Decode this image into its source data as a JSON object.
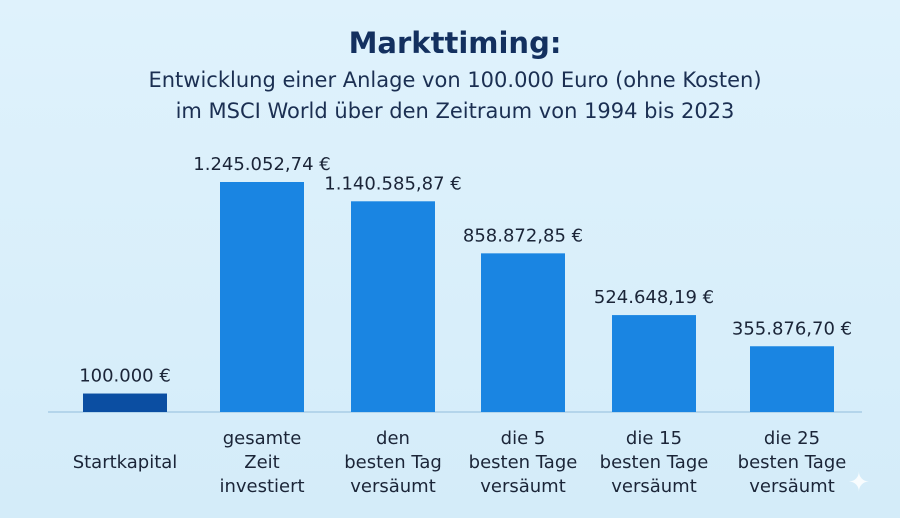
{
  "chart_data": {
    "type": "bar",
    "title": "Markttiming:",
    "subtitle_lines": [
      "Entwicklung einer Anlage von 100.000 Euro (ohne Kosten)",
      "im MSCI World über den Zeitraum von 1994 bis 2023"
    ],
    "categories": [
      [
        "Startkapital"
      ],
      [
        "gesamte",
        "Zeit",
        "investiert"
      ],
      [
        "den",
        "besten Tag",
        "versäumt"
      ],
      [
        "die 5",
        "besten Tage",
        "versäumt"
      ],
      [
        "die 15",
        "besten Tage",
        "versäumt"
      ],
      [
        "die 25",
        "besten Tage",
        "versäumt"
      ]
    ],
    "values": [
      100000,
      1245052.74,
      1140585.87,
      858872.85,
      524648.19,
      355876.7
    ],
    "value_labels": [
      "100.000 €",
      "1.245.052,74 €",
      "1.140.585,87 €",
      "858.872,85 €",
      "524.648,19 €",
      "355.876,70 €"
    ],
    "bar_colors": [
      "#0b4ea2",
      "#1a85e2",
      "#1a85e2",
      "#1a85e2",
      "#1a85e2",
      "#1a85e2"
    ],
    "ylim": [
      0,
      1245052.74
    ],
    "xlabel": "",
    "ylabel": "",
    "grid": false,
    "legend": "none"
  }
}
